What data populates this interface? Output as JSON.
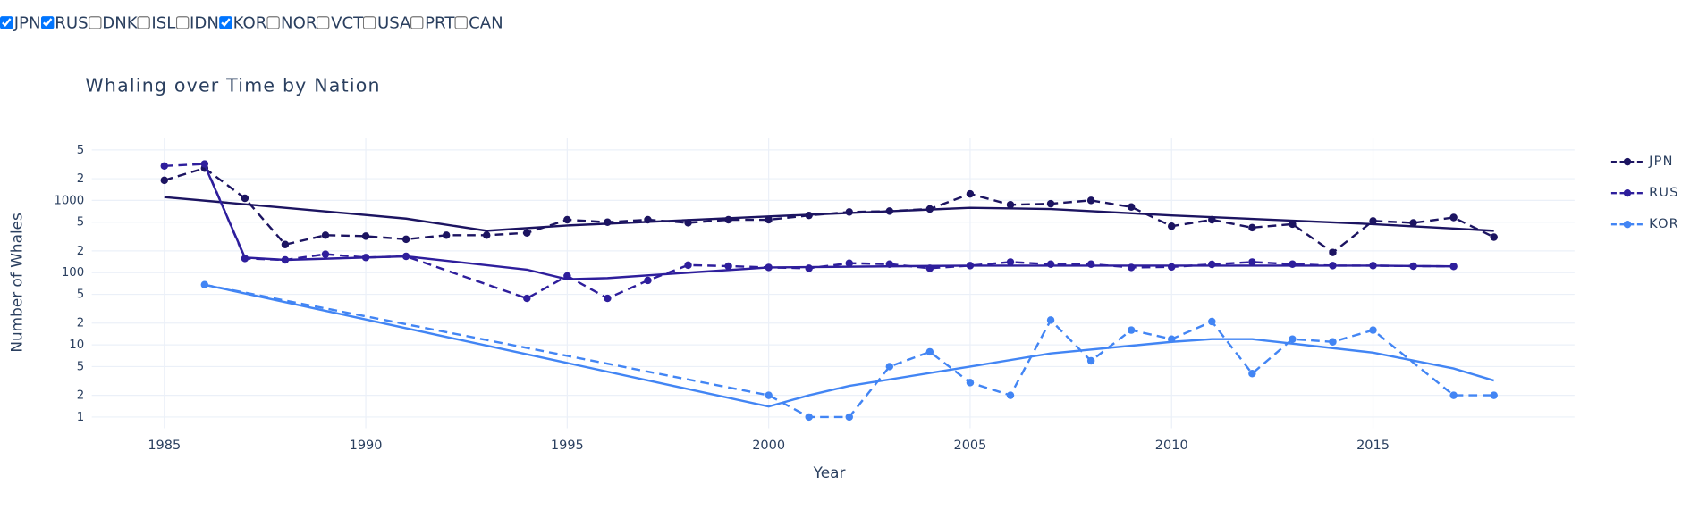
{
  "controls": [
    {
      "label": "JPN",
      "checked": true
    },
    {
      "label": "RUS",
      "checked": true
    },
    {
      "label": "DNK",
      "checked": false
    },
    {
      "label": "ISL",
      "checked": false
    },
    {
      "label": "IDN",
      "checked": false
    },
    {
      "label": "KOR",
      "checked": true
    },
    {
      "label": "NOR",
      "checked": false
    },
    {
      "label": "VCT",
      "checked": false
    },
    {
      "label": "USA",
      "checked": false
    },
    {
      "label": "PRT",
      "checked": false
    },
    {
      "label": "CAN",
      "checked": false
    }
  ],
  "chart_data": {
    "type": "line",
    "title": "Whaling over Time by Nation",
    "x_label": "Year",
    "y_label": "Number of Whales",
    "log_y": true,
    "grid": true,
    "legend_position": "right",
    "xlim": [
      1983.2,
      2020
    ],
    "xticks": [
      1985,
      1990,
      1995,
      2000,
      2005,
      2010,
      2015
    ],
    "ylim": [
      0.7,
      7300
    ],
    "yticks": [
      1,
      2,
      5,
      10,
      {
        "value": 20,
        "label": "2"
      },
      {
        "value": 50,
        "label": "5"
      },
      100,
      {
        "value": 200,
        "label": "2"
      },
      {
        "value": 500,
        "label": "5"
      },
      1000,
      {
        "value": 2000,
        "label": "2"
      },
      {
        "value": 5000,
        "label": "5"
      }
    ],
    "series": [
      {
        "name": "JPN",
        "color": "#1c1461",
        "x": [
          1985,
          1986,
          1987,
          1988,
          1989,
          1990,
          1991,
          1992,
          1993,
          1994,
          1995,
          1996,
          1997,
          1998,
          1999,
          2000,
          2001,
          2002,
          2003,
          2004,
          2005,
          2006,
          2007,
          2008,
          2009,
          2010,
          2011,
          2012,
          2013,
          2014,
          2015,
          2016,
          2017,
          2018
        ],
        "values": [
          1900,
          2800,
          1070,
          245,
          330,
          320,
          290,
          330,
          330,
          355,
          540,
          500,
          540,
          490,
          540,
          540,
          620,
          690,
          710,
          760,
          1230,
          870,
          900,
          1000,
          810,
          440,
          540,
          420,
          470,
          190,
          520,
          490,
          580,
          310
        ]
      },
      {
        "name": "RUS",
        "color": "#2e1e9c",
        "x": [
          1985,
          1986,
          1987,
          1988,
          1989,
          1990,
          1991,
          1994,
          1995,
          1996,
          1997,
          1998,
          1999,
          2000,
          2001,
          2002,
          2003,
          2004,
          2005,
          2006,
          2007,
          2008,
          2009,
          2010,
          2011,
          2012,
          2013,
          2014,
          2015,
          2016,
          2017
        ],
        "values": [
          3000,
          3200,
          157,
          150,
          180,
          162,
          168,
          44,
          90,
          44,
          78,
          127,
          123,
          118,
          115,
          135,
          131,
          115,
          125,
          140,
          131,
          131,
          118,
          120,
          130,
          140,
          131,
          125,
          125,
          123,
          122
        ]
      },
      {
        "name": "KOR",
        "color": "#4285f4",
        "x": [
          1986,
          2000,
          2001,
          2002,
          2003,
          2004,
          2005,
          2006,
          2007,
          2008,
          2009,
          2010,
          2011,
          2012,
          2013,
          2014,
          2015,
          2017,
          2018
        ],
        "values": [
          68,
          2,
          1,
          1,
          5,
          8,
          3,
          2,
          22,
          6,
          16,
          12,
          21,
          4,
          12,
          11,
          16,
          2,
          2
        ]
      }
    ],
    "trend_lines": [
      {
        "color": "#1c1461",
        "x": [
          1985,
          1988,
          1991,
          1993,
          1995,
          2000,
          2005,
          2007,
          2010,
          2015,
          2018
        ],
        "values": [
          1110,
          790,
          560,
          380,
          450,
          600,
          790,
          760,
          620,
          470,
          380
        ]
      },
      {
        "color": "#2e1e9c",
        "x": [
          1986,
          1987,
          1988,
          1991,
          1994,
          1995,
          1996,
          1998,
          2000,
          2005,
          2010,
          2015,
          2017
        ],
        "values": [
          3100,
          162,
          150,
          168,
          110,
          81,
          84,
          100,
          118,
          125,
          125,
          125,
          122
        ]
      },
      {
        "color": "#4285f4",
        "x": [
          1986,
          2000,
          2001,
          2002,
          2005,
          2007,
          2010,
          2011,
          2012,
          2015,
          2017,
          2018
        ],
        "values": [
          68,
          1.4,
          2,
          2.7,
          5,
          7.6,
          11,
          12,
          12,
          7.8,
          4.7,
          3.2
        ]
      }
    ]
  }
}
